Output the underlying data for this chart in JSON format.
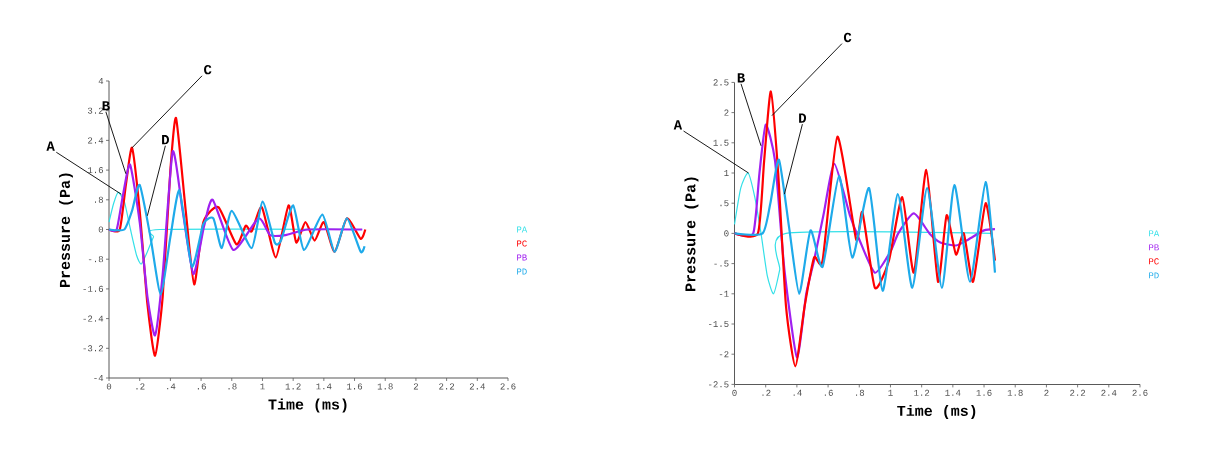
{
  "chart_data": [
    {
      "type": "line",
      "xlabel": "Time (ms)",
      "ylabel": "Pressure (Pa)",
      "xlim": [
        0,
        2.6
      ],
      "ylim": [
        -4,
        4
      ],
      "xticks": [
        0,
        {
          "value": 0.2,
          "label": ".2"
        },
        {
          "value": 0.4,
          "label": ".4"
        },
        {
          "value": 0.6,
          "label": ".6"
        },
        {
          "value": 0.8,
          "label": ".8"
        },
        1,
        {
          "value": 1.2,
          "label": "1.2"
        },
        {
          "value": 1.4,
          "label": "1.4"
        },
        {
          "value": 1.6,
          "label": "1.6"
        },
        {
          "value": 1.8,
          "label": "1.8"
        },
        2,
        {
          "value": 2.2,
          "label": "2.2"
        },
        {
          "value": 2.4,
          "label": "2.4"
        },
        {
          "value": 2.6,
          "label": "2.6"
        }
      ],
      "yticks": [
        -4,
        {
          "value": -3.2,
          "label": "-3.2"
        },
        {
          "value": -2.4,
          "label": "-2.4"
        },
        {
          "value": -1.6,
          "label": "-1.6"
        },
        {
          "value": -0.8,
          "label": "-.8"
        },
        0,
        {
          "value": 0.8,
          "label": ".8"
        },
        {
          "value": 1.6,
          "label": "1.6"
        },
        {
          "value": 2.4,
          "label": "2.4"
        },
        {
          "value": 3.2,
          "label": "3.2"
        },
        4
      ],
      "annotations": [
        {
          "text": "A",
          "x": 0.08,
          "y": 0.95
        },
        {
          "text": "B",
          "x": 0.11,
          "y": 1.5
        },
        {
          "text": "C",
          "x": 0.15,
          "y": 2.2
        },
        {
          "text": "D",
          "x": 0.25,
          "y": 0.37
        }
      ],
      "series": [
        {
          "name": "PA",
          "color": "#33e0e8",
          "x": [
            0,
            0.03,
            0.06,
            0.1,
            0.14,
            0.18,
            0.21,
            0.25,
            0.29,
            0.33,
            1.65
          ],
          "values": [
            0.2,
            0.7,
            1.0,
            0.75,
            0,
            -0.7,
            -0.93,
            -0.6,
            -0.2,
            0,
            0
          ]
        },
        {
          "name": "PC",
          "color": "#ff0000",
          "x": [
            0,
            0.07,
            0.11,
            0.15,
            0.2,
            0.25,
            0.3,
            0.35,
            0.4,
            0.437,
            0.5,
            0.555,
            0.615,
            0.713,
            0.83,
            0.89,
            0.93,
            0.996,
            1.087,
            1.17,
            1.22,
            1.28,
            1.34,
            1.4,
            1.47,
            1.55,
            1.64,
            1.67
          ],
          "values": [
            0,
            0,
            1.2,
            2.2,
            0.5,
            -2.0,
            -3.4,
            -1.8,
            1.6,
            3.0,
            0.5,
            -1.48,
            0.2,
            0.6,
            -0.4,
            0.1,
            -0.05,
            0.6,
            -0.75,
            0.65,
            -0.35,
            0.2,
            -0.3,
            0.2,
            -0.6,
            0.3,
            -0.25,
            0
          ]
        },
        {
          "name": "PB",
          "color": "#a020f0",
          "x": [
            0,
            0.05,
            0.09,
            0.137,
            0.2,
            0.25,
            0.3,
            0.35,
            0.415,
            0.48,
            0.55,
            0.62,
            0.676,
            0.81,
            0.974,
            1.05,
            1.15,
            1.3,
            1.65
          ],
          "values": [
            0,
            0,
            0.9,
            1.75,
            0.2,
            -1.8,
            -2.85,
            -1.2,
            2.1,
            0.5,
            -1.2,
            0.1,
            0.8,
            -0.55,
            0.3,
            -0.15,
            -0.15,
            0,
            0
          ]
        },
        {
          "name": "PD",
          "color": "#1eaaea",
          "x": [
            0,
            0.1,
            0.15,
            0.2,
            0.27,
            0.337,
            0.4,
            0.459,
            0.54,
            0.615,
            0.68,
            0.735,
            0.8,
            0.93,
            1.0,
            1.08,
            1.12,
            1.2,
            1.27,
            1.39,
            1.47,
            1.55,
            1.64,
            1.665
          ],
          "values": [
            0,
            0,
            0.5,
            1.2,
            -0.2,
            -1.75,
            -0.2,
            1.05,
            -1.0,
            0.15,
            0.3,
            -0.5,
            0.5,
            -0.5,
            0.75,
            -0.35,
            -0.3,
            0.65,
            -0.55,
            0.4,
            -0.6,
            0.3,
            -0.6,
            -0.45
          ]
        }
      ]
    },
    {
      "type": "line",
      "xlabel": "Time (ms)",
      "ylabel": "Pressure (Pa)",
      "xlim": [
        0,
        2.6
      ],
      "ylim": [
        -2.5,
        2.5
      ],
      "xticks": [
        0,
        {
          "value": 0.2,
          "label": ".2"
        },
        {
          "value": 0.4,
          "label": ".4"
        },
        {
          "value": 0.6,
          "label": ".6"
        },
        {
          "value": 0.8,
          "label": ".8"
        },
        1,
        {
          "value": 1.2,
          "label": "1.2"
        },
        {
          "value": 1.4,
          "label": "1.4"
        },
        {
          "value": 1.6,
          "label": "1.6"
        },
        {
          "value": 1.8,
          "label": "1.8"
        },
        2,
        {
          "value": 2.2,
          "label": "2.2"
        },
        {
          "value": 2.4,
          "label": "2.4"
        },
        {
          "value": 2.6,
          "label": "2.6"
        }
      ],
      "yticks": [
        {
          "value": -2.5,
          "label": "-2.5"
        },
        -2,
        {
          "value": -1.5,
          "label": "-1.5"
        },
        -1,
        {
          "value": -0.5,
          "label": "-.5"
        },
        0,
        {
          "value": 0.5,
          "label": ".5"
        },
        1,
        {
          "value": 1.5,
          "label": "1.5"
        },
        2,
        {
          "value": 2.5,
          "label": "2.5"
        }
      ],
      "annotations": [
        {
          "text": "A",
          "x": 0.09,
          "y": 1.0
        },
        {
          "text": "B",
          "x": 0.17,
          "y": 1.45
        },
        {
          "text": "C",
          "x": 0.24,
          "y": 1.95
        },
        {
          "text": "D",
          "x": 0.32,
          "y": 0.65
        }
      ],
      "series": [
        {
          "name": "PA",
          "color": "#33e0e8",
          "x": [
            0,
            0.04,
            0.087,
            0.13,
            0.17,
            0.21,
            0.25,
            0.29,
            0.33,
            1.65
          ],
          "values": [
            0.15,
            0.75,
            1.0,
            0.6,
            0,
            -0.7,
            -1.0,
            -0.6,
            0,
            0
          ]
        },
        {
          "name": "PB",
          "color": "#a020f0",
          "x": [
            0,
            0.12,
            0.16,
            0.2,
            0.26,
            0.32,
            0.4,
            0.46,
            0.51,
            0.57,
            0.64,
            0.74,
            0.8,
            0.9,
            1.0,
            1.05,
            1.15,
            1.25,
            1.32,
            1.42,
            1.5,
            1.6,
            1.67
          ],
          "values": [
            0,
            0,
            1.0,
            1.8,
            1.2,
            -0.6,
            -2.05,
            -1.0,
            -0.45,
            0.3,
            1.15,
            0.3,
            -0.1,
            -0.65,
            -0.3,
            0,
            0.33,
            0,
            -0.15,
            -0.2,
            -0.1,
            0.05,
            0.07
          ]
        },
        {
          "name": "PC",
          "color": "#ff0000",
          "x": [
            0,
            0.15,
            0.19,
            0.233,
            0.28,
            0.33,
            0.39,
            0.45,
            0.51,
            0.565,
            0.66,
            0.78,
            0.82,
            0.9,
            0.99,
            1.076,
            1.15,
            1.23,
            1.305,
            1.36,
            1.42,
            1.47,
            1.53,
            1.61,
            1.67
          ],
          "values": [
            0,
            0,
            1.2,
            2.35,
            1.0,
            -1.2,
            -2.2,
            -1.2,
            -0.4,
            -0.45,
            1.6,
            -0.1,
            0.35,
            -0.9,
            -0.45,
            0.6,
            -0.65,
            1.05,
            -0.8,
            0.3,
            -0.35,
            0,
            -0.8,
            0.5,
            -0.45
          ]
        },
        {
          "name": "PD",
          "color": "#1eaaea",
          "x": [
            0,
            0.18,
            0.23,
            0.285,
            0.35,
            0.415,
            0.487,
            0.565,
            0.67,
            0.755,
            0.863,
            0.95,
            1.047,
            1.14,
            1.235,
            1.33,
            1.41,
            1.51,
            1.61,
            1.67
          ],
          "values": [
            0,
            0,
            0.5,
            1.22,
            0.1,
            -1.0,
            0.05,
            -0.55,
            0.95,
            -0.4,
            0.75,
            -0.95,
            0.65,
            -0.9,
            0.75,
            -0.9,
            0.8,
            -0.8,
            0.85,
            -0.65
          ]
        }
      ]
    }
  ]
}
